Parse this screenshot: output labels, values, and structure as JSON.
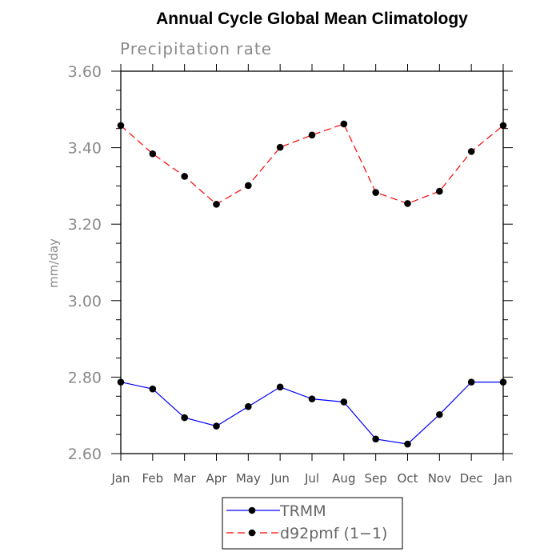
{
  "chart_data": {
    "type": "line",
    "title": "Annual Cycle Global Mean Climatology",
    "subtitle": "Precipitation rate",
    "xlabel": "",
    "ylabel": "mm/day",
    "categories": [
      "Jan",
      "Feb",
      "Mar",
      "Apr",
      "May",
      "Jun",
      "Jul",
      "Aug",
      "Sep",
      "Oct",
      "Nov",
      "Dec",
      "Jan"
    ],
    "ylim": [
      2.6,
      3.6
    ],
    "yticks": [
      2.6,
      2.8,
      3.0,
      3.2,
      3.4,
      3.6
    ],
    "ytick_labels": [
      "2.60",
      "2.80",
      "3.00",
      "3.20",
      "3.40",
      "3.60"
    ],
    "legend_position": "bottom",
    "series": [
      {
        "name": "TRMM",
        "color": "#0000ff",
        "dash": "solid",
        "values": [
          2.787,
          2.769,
          2.694,
          2.672,
          2.723,
          2.774,
          2.743,
          2.735,
          2.638,
          2.625,
          2.702,
          2.787,
          2.787
        ]
      },
      {
        "name": "d92pmf (1−1)",
        "color": "#ff0000",
        "dash": "dashed",
        "values": [
          3.458,
          3.384,
          3.325,
          3.252,
          3.301,
          3.401,
          3.433,
          3.462,
          3.283,
          3.254,
          3.286,
          3.39,
          3.458
        ]
      }
    ]
  }
}
